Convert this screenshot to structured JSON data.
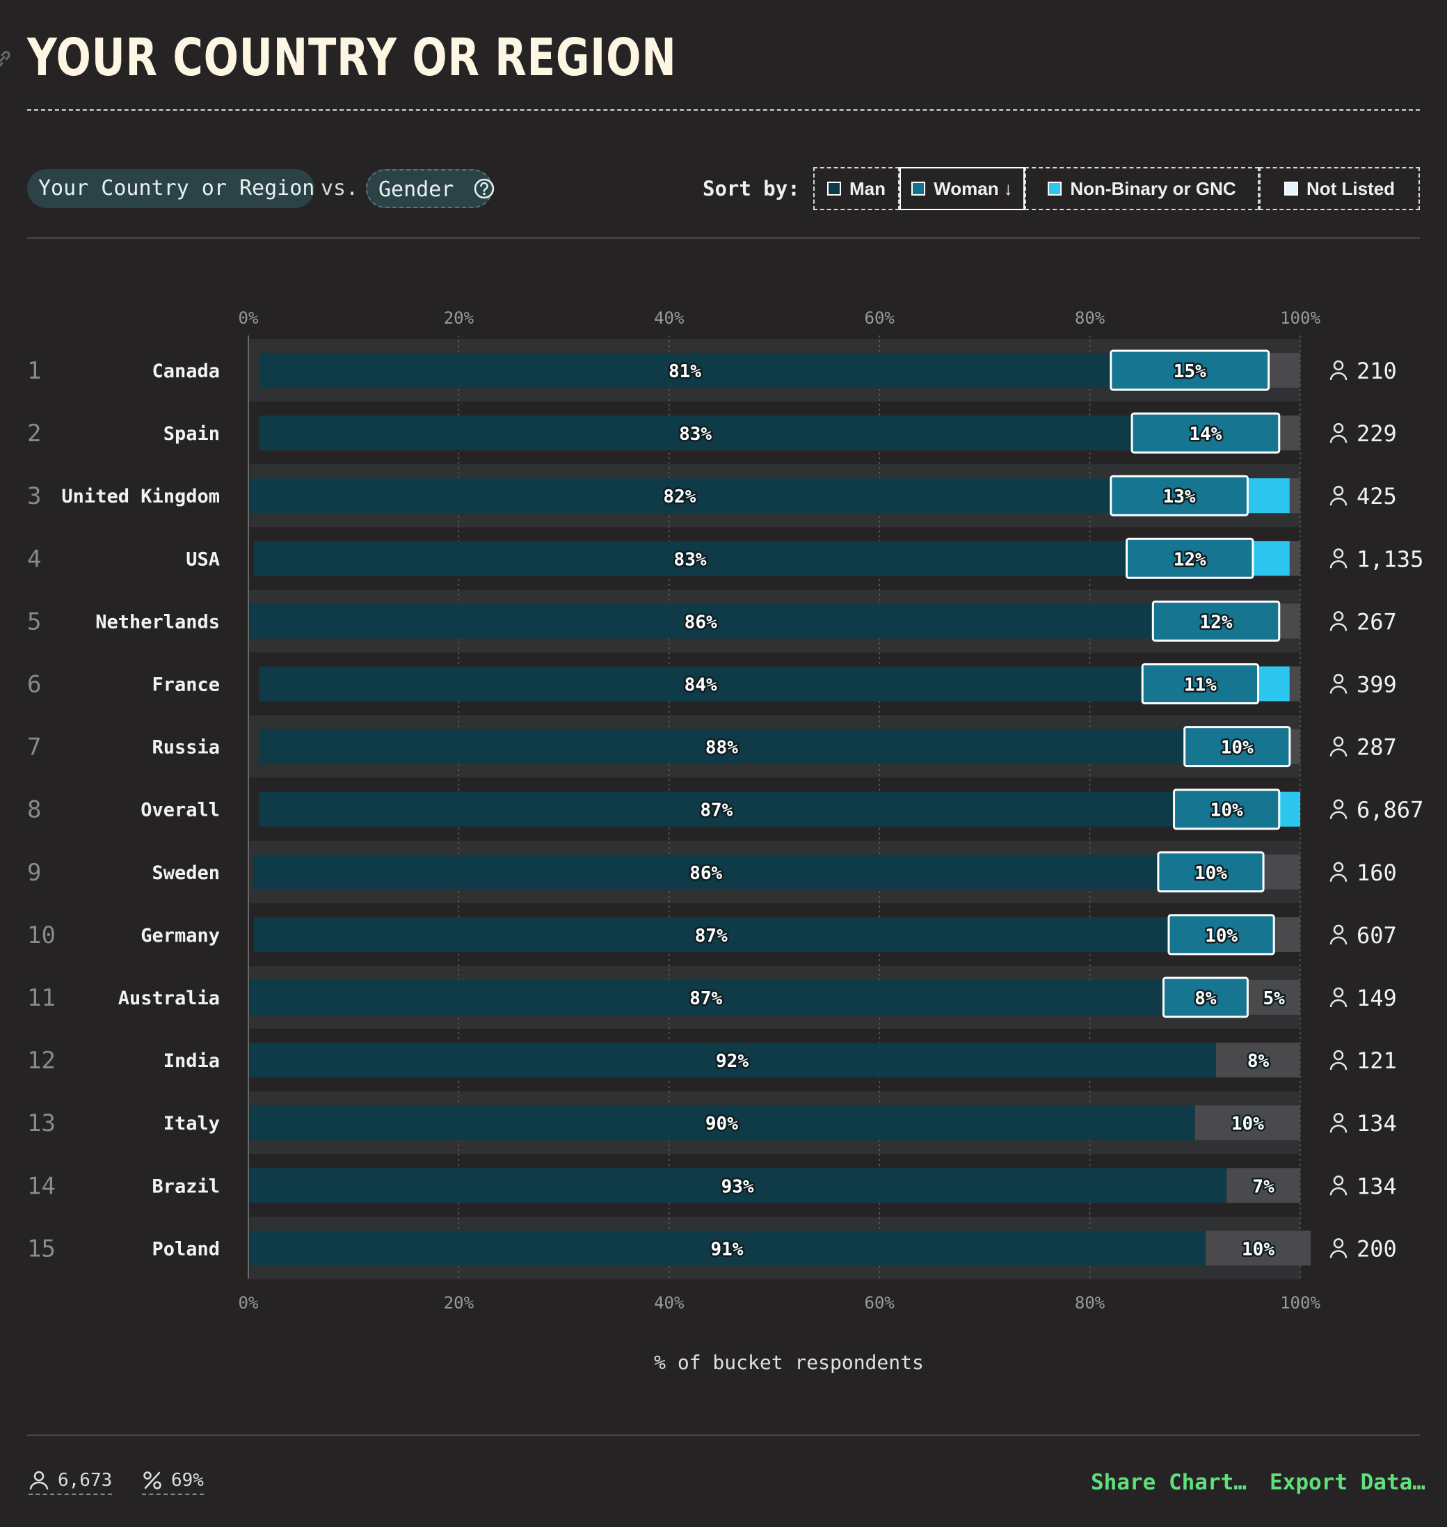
{
  "title": "YOUR COUNTRY OR REGION",
  "controls": {
    "primary_label": "Your Country or Region",
    "vs_label": "vs.",
    "secondary_label": "Gender",
    "sort_by_label": "Sort by:",
    "sort_options": [
      {
        "label": "Man",
        "color": "#0c3a48",
        "active": false
      },
      {
        "label": "Woman ↓",
        "color": "#13728e",
        "active": true
      },
      {
        "label": "Non-Binary or GNC",
        "color": "#2cc7ef",
        "active": false
      },
      {
        "label": "Not Listed",
        "color": "#e4f4fb",
        "active": false
      }
    ]
  },
  "chart_data": {
    "type": "bar",
    "orientation": "horizontal",
    "stacked": true,
    "xlabel": "% of bucket respondents",
    "xlim": [
      0,
      100
    ],
    "ticks": [
      "0%",
      "20%",
      "40%",
      "60%",
      "80%",
      "100%"
    ],
    "colors": {
      "man": "#0f3a47",
      "woman": "#167590",
      "nonbinary": "#2cc6ee",
      "not_listed": "#4a4a4c"
    },
    "rows": [
      {
        "rank": "1",
        "name": "Canada",
        "man": 81,
        "woman": 15,
        "nonbinary": 0,
        "not_listed": 3,
        "man_label": "81%",
        "woman_label": "15%",
        "count": "210"
      },
      {
        "rank": "2",
        "name": "Spain",
        "man": 83,
        "woman": 14,
        "nonbinary": 0,
        "not_listed": 2,
        "man_label": "83%",
        "woman_label": "14%",
        "count": "229"
      },
      {
        "rank": "3",
        "name": "United Kingdom",
        "man": 82,
        "woman": 13,
        "nonbinary": 4,
        "not_listed": 1,
        "man_label": "82%",
        "woman_label": "13%",
        "count": "425"
      },
      {
        "rank": "4",
        "name": "USA",
        "man": 83,
        "woman": 12,
        "nonbinary": 3.5,
        "not_listed": 1,
        "man_label": "83%",
        "woman_label": "12%",
        "count": "1,135"
      },
      {
        "rank": "5",
        "name": "Netherlands",
        "man": 86,
        "woman": 12,
        "nonbinary": 0,
        "not_listed": 2,
        "man_label": "86%",
        "woman_label": "12%",
        "count": "267"
      },
      {
        "rank": "6",
        "name": "France",
        "man": 84,
        "woman": 11,
        "nonbinary": 3,
        "not_listed": 1,
        "man_label": "84%",
        "woman_label": "11%",
        "count": "399"
      },
      {
        "rank": "7",
        "name": "Russia",
        "man": 88,
        "woman": 10,
        "nonbinary": 0,
        "not_listed": 1,
        "man_label": "88%",
        "woman_label": "10%",
        "count": "287"
      },
      {
        "rank": "8",
        "name": "Overall",
        "man": 87,
        "woman": 10,
        "nonbinary": 2,
        "not_listed": 0,
        "man_label": "87%",
        "woman_label": "10%",
        "count": "6,867"
      },
      {
        "rank": "9",
        "name": "Sweden",
        "man": 86,
        "woman": 10,
        "nonbinary": 0,
        "not_listed": 3.5,
        "man_label": "86%",
        "woman_label": "10%",
        "count": "160"
      },
      {
        "rank": "10",
        "name": "Germany",
        "man": 87,
        "woman": 10,
        "nonbinary": 0,
        "not_listed": 2.5,
        "man_label": "87%",
        "woman_label": "10%",
        "count": "607"
      },
      {
        "rank": "11",
        "name": "Australia",
        "man": 87,
        "woman": 8,
        "nonbinary": 0,
        "not_listed": 5,
        "man_label": "87%",
        "woman_label": "8%",
        "not_listed_label": "5%",
        "count": "149"
      },
      {
        "rank": "12",
        "name": "India",
        "man": 92,
        "woman": 0,
        "nonbinary": 0,
        "not_listed": 8,
        "man_label": "92%",
        "not_listed_label": "8%",
        "count": "121"
      },
      {
        "rank": "13",
        "name": "Italy",
        "man": 90,
        "woman": 0,
        "nonbinary": 0,
        "not_listed": 10,
        "man_label": "90%",
        "not_listed_label": "10%",
        "count": "134"
      },
      {
        "rank": "14",
        "name": "Brazil",
        "man": 93,
        "woman": 0,
        "nonbinary": 0,
        "not_listed": 7,
        "man_label": "93%",
        "not_listed_label": "7%",
        "count": "134"
      },
      {
        "rank": "15",
        "name": "Poland",
        "man": 91,
        "woman": 0,
        "nonbinary": 0,
        "not_listed": 10,
        "man_label": "91%",
        "not_listed_label": "10%",
        "count": "200"
      }
    ]
  },
  "footer": {
    "respondents": "6,673",
    "percent": "69%",
    "share_label": "Share Chart…",
    "export_label": "Export Data…"
  }
}
